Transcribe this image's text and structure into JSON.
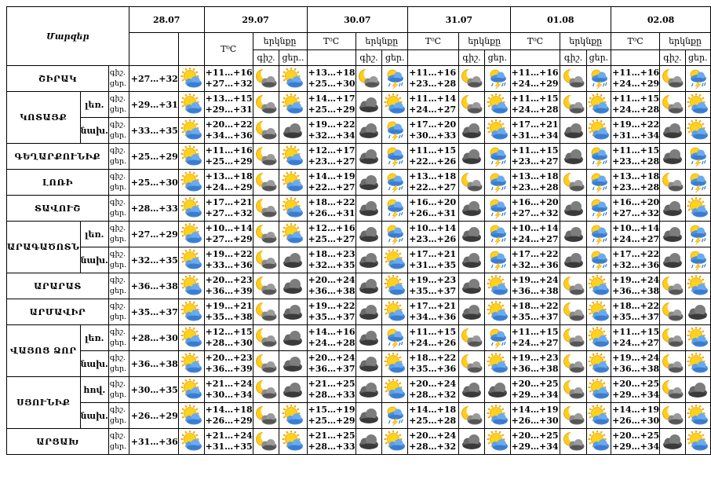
{
  "header": {
    "corner_label": "Մարզեր",
    "temp_label": "T⁰C",
    "sky_label": "երկնքը",
    "night_short": "գիշ.",
    "day_short": "ցեր.",
    "day_short_trunc": "ցեր..",
    "dates": [
      "28.07",
      "29.07",
      "30.07",
      "31.07",
      "01.08",
      "02.08"
    ]
  },
  "row_labels": {
    "night": "գիշ.",
    "day": "ցեր."
  },
  "icon_names": {
    "sun-cloud": "sun-behind-cloud-icon",
    "moon-cloud": "moon-behind-cloud-icon",
    "dark-cloud": "dark-cloud-icon",
    "sun-rain": "sun-cloud-rain-icon",
    "rain-storm": "cloud-rain-thunder-icon"
  },
  "regions": [
    {
      "name": "ՇԻՐԱԿ",
      "rows": [
        {
          "sub": "",
          "first": "+27…+32",
          "days": [
            {
              "t": [
                "+11…+16",
                "+27…+32"
              ],
              "i": [
                "moon-cloud",
                "sun-cloud"
              ]
            },
            {
              "t": [
                "+13…+18",
                "+25…+30"
              ],
              "i": [
                "moon-cloud",
                "rain-storm"
              ]
            },
            {
              "t": [
                "+11…+16",
                "+23…+28"
              ],
              "i": [
                "moon-cloud",
                "rain-storm"
              ]
            },
            {
              "t": [
                "+11…+16",
                "+24…+29"
              ],
              "i": [
                "moon-cloud",
                "rain-storm"
              ]
            },
            {
              "t": [
                "+11…+16",
                "+24…+29"
              ],
              "i": [
                "moon-cloud",
                "rain-storm"
              ]
            }
          ]
        }
      ]
    },
    {
      "name": "ԿՈՏԱՅՔ",
      "rows": [
        {
          "sub": "լեռ.",
          "first": "+29…+31",
          "days": [
            {
              "t": [
                "+13…+15",
                "+29…+31"
              ],
              "i": [
                "moon-cloud",
                "sun-cloud"
              ]
            },
            {
              "t": [
                "+14…+17",
                "+25…+29"
              ],
              "i": [
                "dark-cloud",
                "sun-cloud"
              ]
            },
            {
              "t": [
                "+11…+14",
                "+24…+27"
              ],
              "i": [
                "moon-cloud",
                "sun-cloud"
              ]
            },
            {
              "t": [
                "+11…+15",
                "+24…+28"
              ],
              "i": [
                "moon-cloud",
                "sun-cloud"
              ]
            },
            {
              "t": [
                "+11…+15",
                "+24…+28"
              ],
              "i": [
                "moon-cloud",
                "sun-cloud"
              ]
            }
          ]
        },
        {
          "sub": "նախ.",
          "first": "+33…+35",
          "days": [
            {
              "t": [
                "+20…+22",
                "+34…+36"
              ],
              "i": [
                "moon-cloud",
                "dark-cloud"
              ]
            },
            {
              "t": [
                "+19…+22",
                "+32…+34"
              ],
              "i": [
                "dark-cloud",
                "rain-storm"
              ]
            },
            {
              "t": [
                "+17…+20",
                "+30…+33"
              ],
              "i": [
                "dark-cloud",
                "sun-cloud"
              ]
            },
            {
              "t": [
                "+17…+21",
                "+31…+34"
              ],
              "i": [
                "dark-cloud",
                "sun-cloud"
              ]
            },
            {
              "t": [
                "+19…+22",
                "+31…+34"
              ],
              "i": [
                "dark-cloud",
                "sun-cloud"
              ]
            }
          ]
        }
      ]
    },
    {
      "name": "ԳԵՂԱՐՔՈՒՆԻՔ",
      "rows": [
        {
          "sub": "",
          "first": "+25…+29",
          "days": [
            {
              "t": [
                "+11…+16",
                "+25…+29"
              ],
              "i": [
                "moon-cloud",
                "sun-cloud"
              ]
            },
            {
              "t": [
                "+12…+17",
                "+23…+27"
              ],
              "i": [
                "dark-cloud",
                "rain-storm"
              ]
            },
            {
              "t": [
                "+11…+15",
                "+22…+26"
              ],
              "i": [
                "dark-cloud",
                "rain-storm"
              ]
            },
            {
              "t": [
                "+11…+15",
                "+23…+27"
              ],
              "i": [
                "dark-cloud",
                "rain-storm"
              ]
            },
            {
              "t": [
                "+11…+15",
                "+23…+28"
              ],
              "i": [
                "dark-cloud",
                "rain-storm"
              ]
            }
          ]
        }
      ]
    },
    {
      "name": "ԼՈՌԻ",
      "rows": [
        {
          "sub": "",
          "first": "+25…+30",
          "days": [
            {
              "t": [
                "+13…+18",
                "+24…+29"
              ],
              "i": [
                "moon-cloud",
                "sun-cloud"
              ]
            },
            {
              "t": [
                "+14…+19",
                "+22…+27"
              ],
              "i": [
                "dark-cloud",
                "rain-storm"
              ]
            },
            {
              "t": [
                "+13…+18",
                "+22…+27"
              ],
              "i": [
                "moon-cloud",
                "rain-storm"
              ]
            },
            {
              "t": [
                "+13…+18",
                "+23…+28"
              ],
              "i": [
                "moon-cloud",
                "rain-storm"
              ]
            },
            {
              "t": [
                "+13…+18",
                "+23…+28"
              ],
              "i": [
                "moon-cloud",
                "rain-storm"
              ]
            }
          ]
        }
      ]
    },
    {
      "name": "ՏԱՎՈՒՇ",
      "rows": [
        {
          "sub": "",
          "first": "+28…+33",
          "days": [
            {
              "t": [
                "+17…+21",
                "+27…+32"
              ],
              "i": [
                "moon-cloud",
                "sun-cloud"
              ]
            },
            {
              "t": [
                "+18…+22",
                "+26…+31"
              ],
              "i": [
                "dark-cloud",
                "rain-storm"
              ]
            },
            {
              "t": [
                "+16…+20",
                "+26…+31"
              ],
              "i": [
                "dark-cloud",
                "rain-storm"
              ]
            },
            {
              "t": [
                "+16…+20",
                "+27…+32"
              ],
              "i": [
                "dark-cloud",
                "rain-storm"
              ]
            },
            {
              "t": [
                "+16…+20",
                "+27…+32"
              ],
              "i": [
                "dark-cloud",
                "sun-cloud"
              ]
            }
          ]
        }
      ]
    },
    {
      "name": "ԱՐԱԳԱԾՈՏՆ",
      "rows": [
        {
          "sub": "լեռ.",
          "first": "+27…+29",
          "days": [
            {
              "t": [
                "+10…+14",
                "+27…+29"
              ],
              "i": [
                "moon-cloud",
                "sun-cloud"
              ]
            },
            {
              "t": [
                "+12…+16",
                "+25…+27"
              ],
              "i": [
                "dark-cloud",
                "rain-storm"
              ]
            },
            {
              "t": [
                "+10…+14",
                "+23…+26"
              ],
              "i": [
                "dark-cloud",
                "rain-storm"
              ]
            },
            {
              "t": [
                "+10…+14",
                "+24…+27"
              ],
              "i": [
                "dark-cloud",
                "rain-storm"
              ]
            },
            {
              "t": [
                "+10…+14",
                "+24…+27"
              ],
              "i": [
                "dark-cloud",
                "rain-storm"
              ]
            }
          ]
        },
        {
          "sub": "նախ.",
          "first": "+32…+35",
          "days": [
            {
              "t": [
                "+19…+22",
                "+33…+36"
              ],
              "i": [
                "moon-cloud",
                "dark-cloud"
              ]
            },
            {
              "t": [
                "+18…+23",
                "+32…+35"
              ],
              "i": [
                "dark-cloud",
                "sun-cloud"
              ]
            },
            {
              "t": [
                "+17…+21",
                "+31…+35"
              ],
              "i": [
                "dark-cloud",
                "rain-storm"
              ]
            },
            {
              "t": [
                "+17…+22",
                "+32…+36"
              ],
              "i": [
                "dark-cloud",
                "rain-storm"
              ]
            },
            {
              "t": [
                "+17…+22",
                "+32…+36"
              ],
              "i": [
                "dark-cloud",
                "rain-storm"
              ]
            }
          ]
        }
      ]
    },
    {
      "name": "ԱՐԱՐԱՏ",
      "rows": [
        {
          "sub": "",
          "first": "+36…+38",
          "days": [
            {
              "t": [
                "+20…+23",
                "+36…+39"
              ],
              "i": [
                "moon-cloud",
                "dark-cloud"
              ]
            },
            {
              "t": [
                "+20…+24",
                "+36…+38"
              ],
              "i": [
                "dark-cloud",
                "sun-cloud"
              ]
            },
            {
              "t": [
                "+19…+23",
                "+35…+37"
              ],
              "i": [
                "dark-cloud",
                "sun-cloud"
              ]
            },
            {
              "t": [
                "+19…+24",
                "+36…+38"
              ],
              "i": [
                "moon-cloud",
                "sun-cloud"
              ]
            },
            {
              "t": [
                "+19…+24",
                "+36…+38"
              ],
              "i": [
                "moon-cloud",
                "sun-cloud"
              ]
            }
          ]
        }
      ]
    },
    {
      "name": "ԱՐՄԱՎԻՐ",
      "rows": [
        {
          "sub": "",
          "first": "+35…+37",
          "days": [
            {
              "t": [
                "+19…+21",
                "+35…+38"
              ],
              "i": [
                "moon-cloud",
                "dark-cloud"
              ]
            },
            {
              "t": [
                "+19…+22",
                "+35…+37"
              ],
              "i": [
                "dark-cloud",
                "sun-cloud"
              ]
            },
            {
              "t": [
                "+17…+21",
                "+34…+36"
              ],
              "i": [
                "dark-cloud",
                "sun-cloud"
              ]
            },
            {
              "t": [
                "+18…+22",
                "+35…+37"
              ],
              "i": [
                "moon-cloud",
                "sun-cloud"
              ]
            },
            {
              "t": [
                "+18…+22",
                "+35…+37"
              ],
              "i": [
                "moon-cloud",
                "dark-cloud"
              ]
            }
          ]
        }
      ]
    },
    {
      "name": "ՎԱՅՈՑ ՁՈՐ",
      "rows": [
        {
          "sub": "լեռ.",
          "first": "+28…+30",
          "days": [
            {
              "t": [
                "+12…+15",
                "+28…+30"
              ],
              "i": [
                "moon-cloud",
                "dark-cloud"
              ]
            },
            {
              "t": [
                "+14…+16",
                "+24…+28"
              ],
              "i": [
                "dark-cloud",
                "rain-storm"
              ]
            },
            {
              "t": [
                "+11…+15",
                "+24…+26"
              ],
              "i": [
                "moon-cloud",
                "rain-storm"
              ]
            },
            {
              "t": [
                "+11…+15",
                "+24…+27"
              ],
              "i": [
                "moon-cloud",
                "sun-cloud"
              ]
            },
            {
              "t": [
                "+11…+15",
                "+24…+27"
              ],
              "i": [
                "moon-cloud",
                "sun-cloud"
              ]
            }
          ]
        },
        {
          "sub": "նախ.",
          "first": "+36…+38",
          "days": [
            {
              "t": [
                "+20…+23",
                "+36…+39"
              ],
              "i": [
                "moon-cloud",
                "dark-cloud"
              ]
            },
            {
              "t": [
                "+20…+24",
                "+36…+37"
              ],
              "i": [
                "dark-cloud",
                "sun-cloud"
              ]
            },
            {
              "t": [
                "+18…+22",
                "+35…+36"
              ],
              "i": [
                "moon-cloud",
                "sun-cloud"
              ]
            },
            {
              "t": [
                "+19…+23",
                "+36…+38"
              ],
              "i": [
                "moon-cloud",
                "sun-cloud"
              ]
            },
            {
              "t": [
                "+19…+24",
                "+36…+38"
              ],
              "i": [
                "moon-cloud",
                "sun-cloud"
              ]
            }
          ]
        }
      ]
    },
    {
      "name": "ՍՅՈՒՆԻՔ",
      "rows": [
        {
          "sub": "հով.",
          "first": "+30…+35",
          "days": [
            {
              "t": [
                "+21…+24",
                "+30…+34"
              ],
              "i": [
                "moon-cloud",
                "dark-cloud"
              ]
            },
            {
              "t": [
                "+21…+25",
                "+28…+33"
              ],
              "i": [
                "dark-cloud",
                "sun-cloud"
              ]
            },
            {
              "t": [
                "+20…+24",
                "+28…+32"
              ],
              "i": [
                "dark-cloud",
                "dark-cloud"
              ]
            },
            {
              "t": [
                "+20…+25",
                "+29…+34"
              ],
              "i": [
                "moon-cloud",
                "sun-cloud"
              ]
            },
            {
              "t": [
                "+20…+25",
                "+29…+34"
              ],
              "i": [
                "moon-cloud",
                "dark-cloud"
              ]
            }
          ]
        },
        {
          "sub": "նախ.",
          "first": "+26…+29",
          "days": [
            {
              "t": [
                "+14…+18",
                "+26…+29"
              ],
              "i": [
                "moon-cloud",
                "sun-cloud"
              ]
            },
            {
              "t": [
                "+15…+19",
                "+25…+29"
              ],
              "i": [
                "dark-cloud",
                "rain-storm"
              ]
            },
            {
              "t": [
                "+14…+18",
                "+25…+28"
              ],
              "i": [
                "moon-cloud",
                "sun-cloud"
              ]
            },
            {
              "t": [
                "+14…+19",
                "+26…+30"
              ],
              "i": [
                "moon-cloud",
                "sun-cloud"
              ]
            },
            {
              "t": [
                "+14…+19",
                "+26…+30"
              ],
              "i": [
                "moon-cloud",
                "sun-cloud"
              ]
            }
          ]
        }
      ]
    },
    {
      "name": "ԱՐՑԱԽ",
      "rows": [
        {
          "sub": "",
          "first": "+31…+36",
          "days": [
            {
              "t": [
                "+21…+24",
                "+31…+35"
              ],
              "i": [
                "moon-cloud",
                "sun-cloud"
              ]
            },
            {
              "t": [
                "+21…+25",
                "+28…+33"
              ],
              "i": [
                "dark-cloud",
                "sun-cloud"
              ]
            },
            {
              "t": [
                "+20…+24",
                "+28…+32"
              ],
              "i": [
                "dark-cloud",
                "sun-cloud"
              ]
            },
            {
              "t": [
                "+20…+25",
                "+29…+34"
              ],
              "i": [
                "moon-cloud",
                "sun-cloud"
              ]
            },
            {
              "t": [
                "+20…+25",
                "+29…+34"
              ],
              "i": [
                "dark-cloud",
                "sun-cloud"
              ]
            }
          ]
        }
      ]
    }
  ]
}
